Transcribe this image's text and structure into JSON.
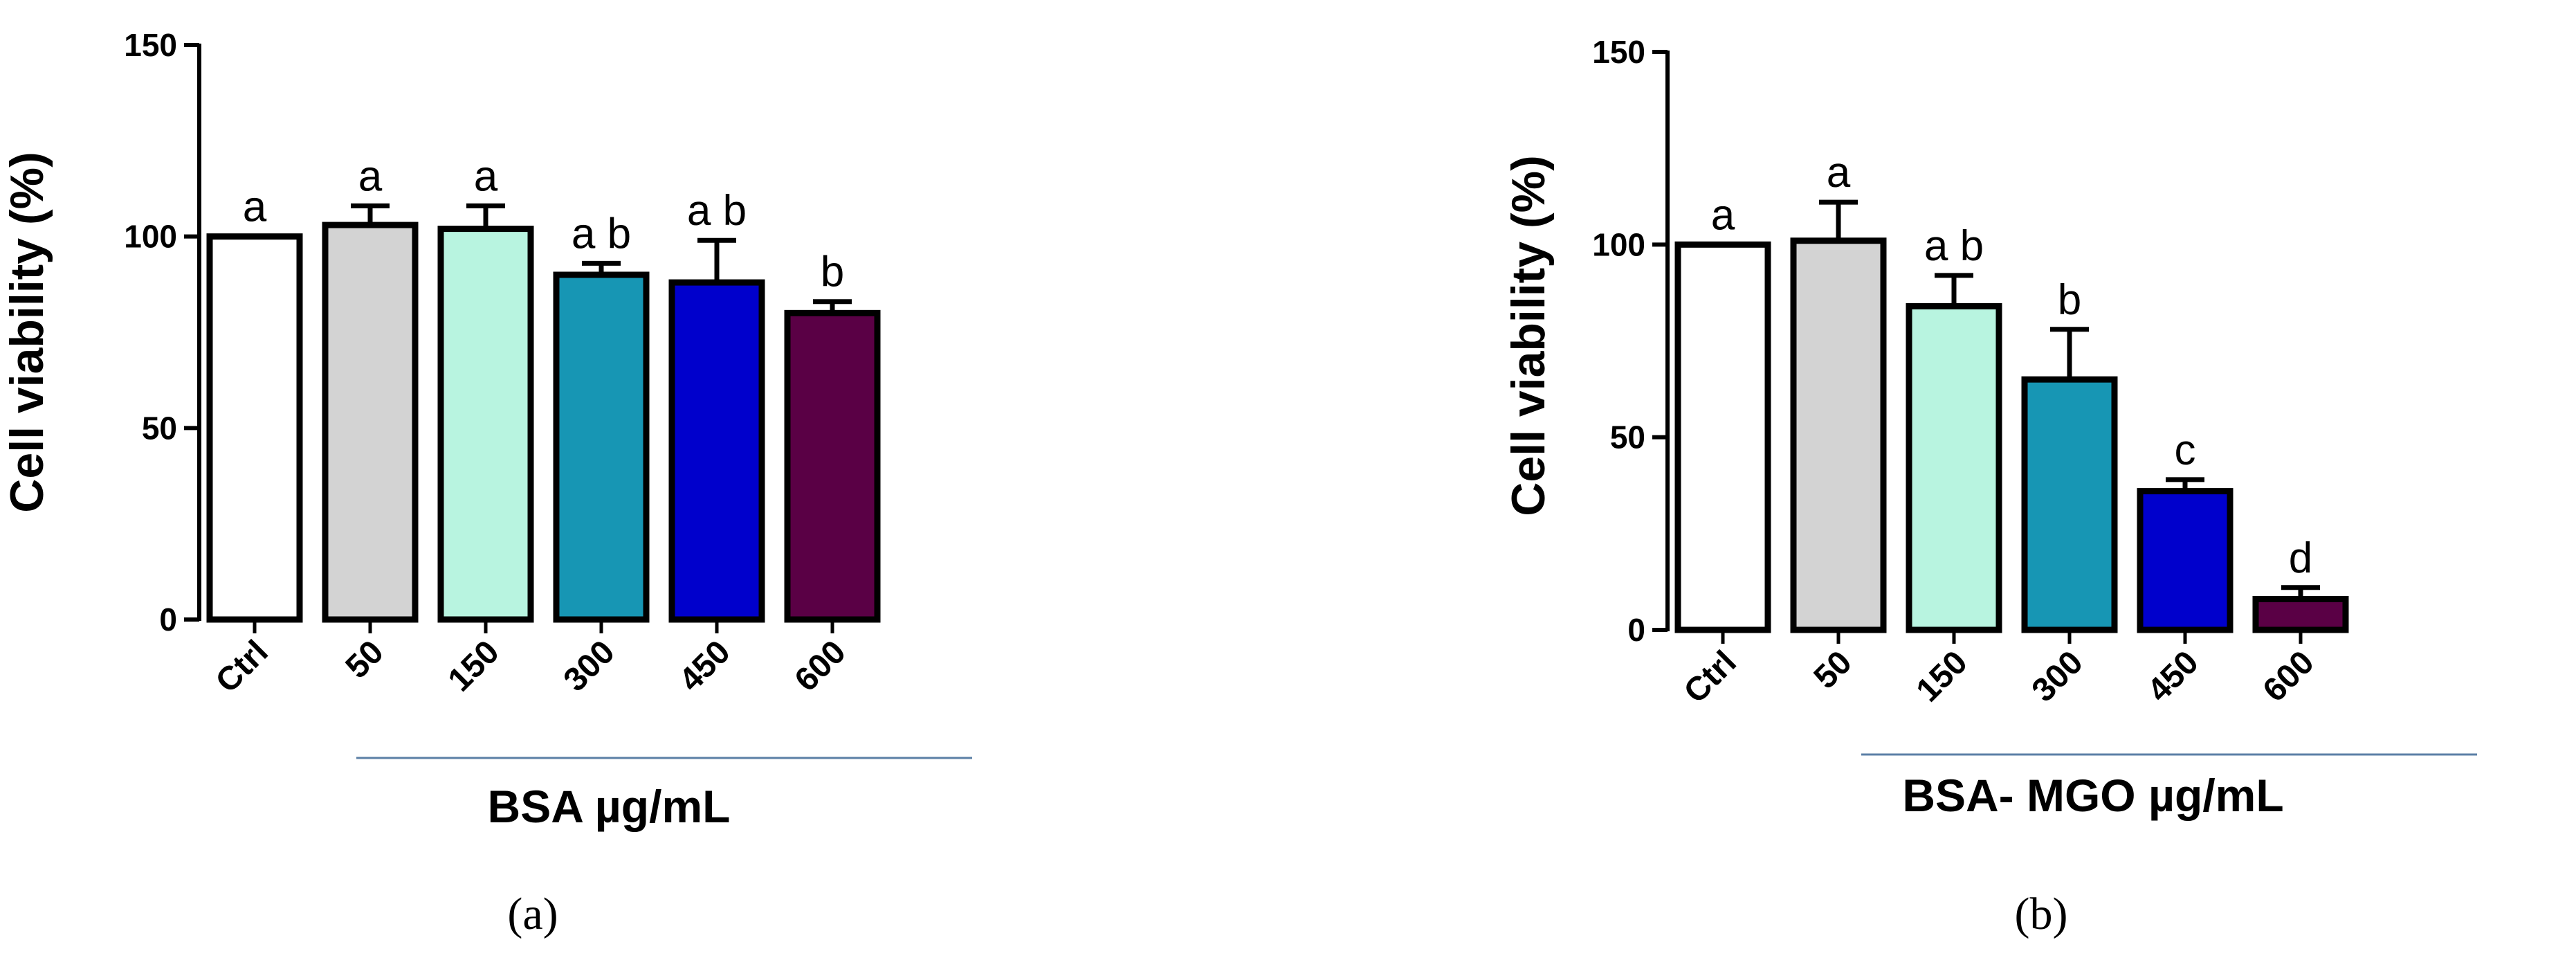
{
  "chart_data": [
    {
      "type": "bar",
      "panel_label": "(a)",
      "ylabel": "Cell viability (%)",
      "xlabel": "BSA µg/mL",
      "ylim": [
        0,
        150
      ],
      "yticks": [
        0,
        50,
        100,
        150
      ],
      "grid": false,
      "categories": [
        "Ctrl",
        "50",
        "150",
        "300",
        "450",
        "600"
      ],
      "values": [
        100,
        103,
        102,
        90,
        88,
        80
      ],
      "errors": [
        0,
        5,
        6,
        3,
        11,
        3
      ],
      "significance": [
        "a",
        "a",
        "a",
        "a b",
        "a b",
        "b"
      ],
      "colors": [
        "#ffffff",
        "#d3d3d3",
        "#b8f4e0",
        "#1796b4",
        "#0000cc",
        "#5a0045"
      ]
    },
    {
      "type": "bar",
      "panel_label": "(b)",
      "ylabel": "Cell viability (%)",
      "xlabel": "BSA- MGO µg/mL",
      "ylim": [
        0,
        150
      ],
      "yticks": [
        0,
        50,
        100,
        150
      ],
      "grid": false,
      "categories": [
        "Ctrl",
        "50",
        "150",
        "300",
        "450",
        "600"
      ],
      "values": [
        100,
        101,
        84,
        65,
        36,
        8
      ],
      "errors": [
        0,
        10,
        8,
        13,
        3,
        3
      ],
      "significance": [
        "a",
        "a",
        "a b",
        "b",
        "c",
        "d"
      ],
      "colors": [
        "#ffffff",
        "#d3d3d3",
        "#b8f4e0",
        "#1796b4",
        "#0000cc",
        "#5a0045"
      ]
    }
  ]
}
